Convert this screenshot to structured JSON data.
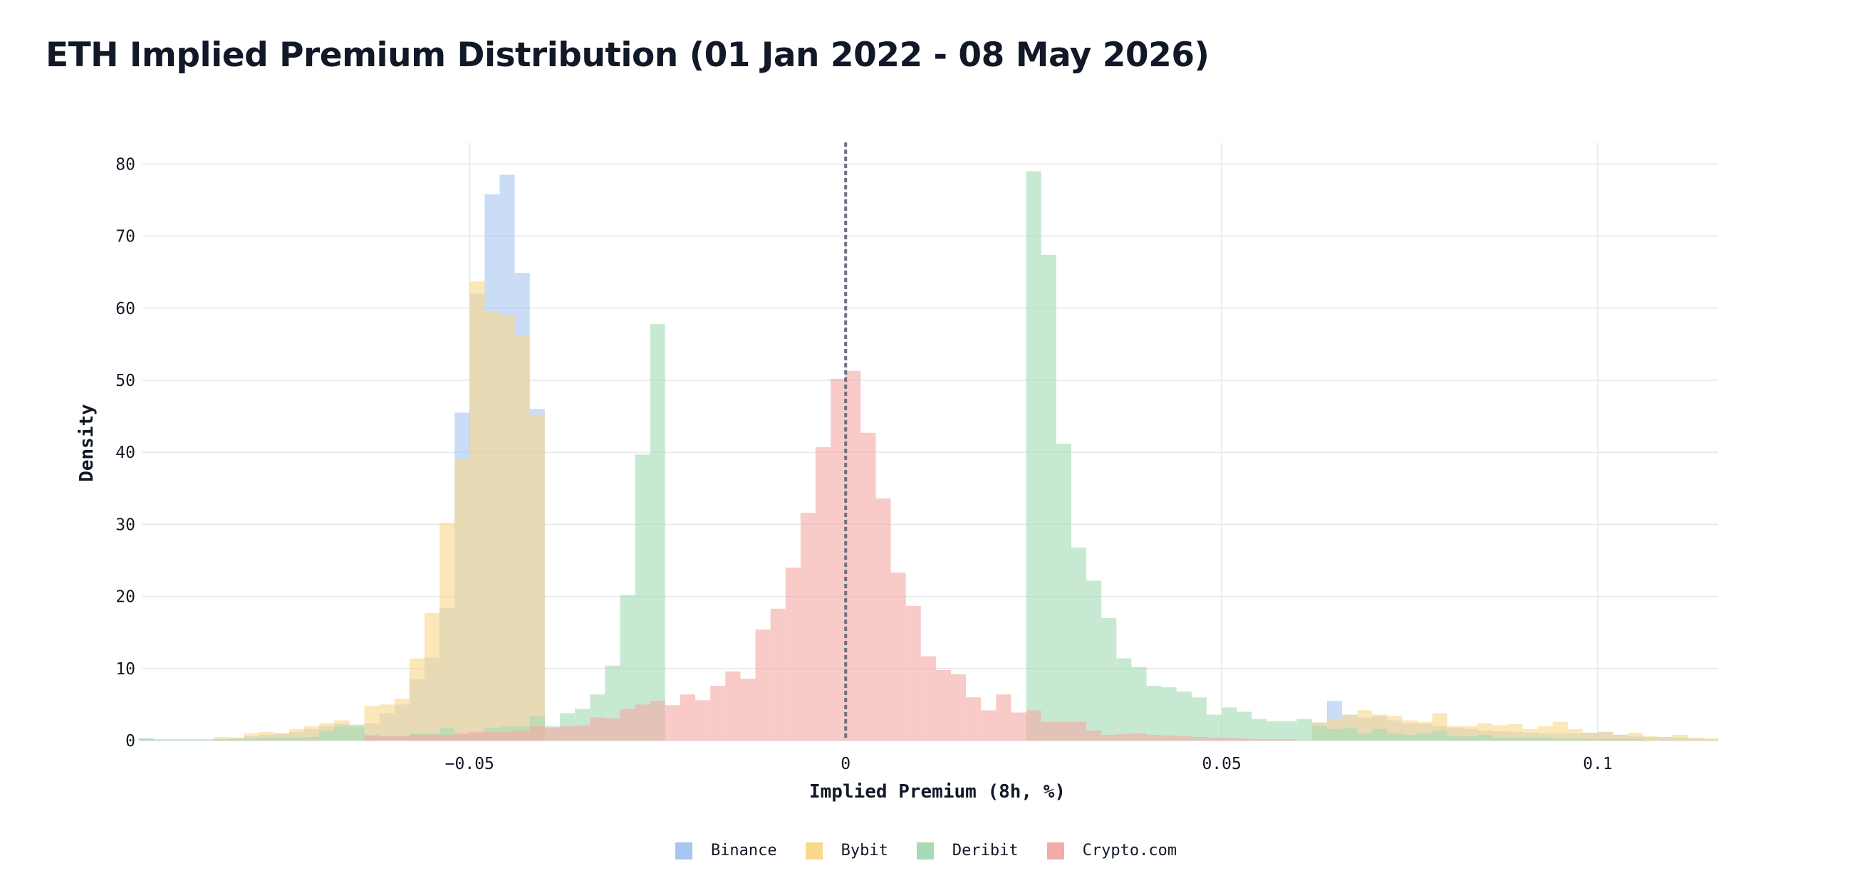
{
  "chart_data": {
    "type": "bar",
    "title": "ETH Implied Premium Distribution (01 Jan 2022 - 08 May 2026)",
    "xlabel": "Implied Premium (8h, %)",
    "ylabel": "Density",
    "xlim": [
      -0.0935,
      0.116
    ],
    "ylim": [
      0,
      83
    ],
    "x_ticks": [
      {
        "value": -0.05,
        "label": "−0.05"
      },
      {
        "value": 0,
        "label": "0"
      },
      {
        "value": 0.05,
        "label": "0.05"
      },
      {
        "value": 0.1,
        "label": "0.1"
      }
    ],
    "y_ticks": [
      {
        "value": 0,
        "label": "0"
      },
      {
        "value": 10,
        "label": "10"
      },
      {
        "value": 20,
        "label": "20"
      },
      {
        "value": 30,
        "label": "30"
      },
      {
        "value": 40,
        "label": "40"
      },
      {
        "value": 50,
        "label": "50"
      },
      {
        "value": 60,
        "label": "60"
      },
      {
        "value": 70,
        "label": "70"
      },
      {
        "value": 80,
        "label": "80"
      }
    ],
    "reference_line": {
      "x": 0,
      "style": "dashed",
      "color": "#6b7280"
    },
    "grid": true,
    "legend_position": "bottom-center",
    "bin_width": 0.002,
    "series": [
      {
        "name": "Binance",
        "color": "#a9c6f0",
        "bins": [
          [
            -0.094,
            0.3
          ],
          [
            -0.084,
            0.2
          ],
          [
            -0.082,
            0.4
          ],
          [
            -0.08,
            0.6
          ],
          [
            -0.078,
            0.8
          ],
          [
            -0.076,
            1.0
          ],
          [
            -0.074,
            1.2
          ],
          [
            -0.072,
            1.6
          ],
          [
            -0.07,
            2.0
          ],
          [
            -0.068,
            2.3
          ],
          [
            -0.066,
            1.8
          ],
          [
            -0.064,
            2.4
          ],
          [
            -0.062,
            3.8
          ],
          [
            -0.06,
            5.0
          ],
          [
            -0.058,
            8.5
          ],
          [
            -0.056,
            11.5
          ],
          [
            -0.054,
            18.4
          ],
          [
            -0.052,
            45.5
          ],
          [
            -0.05,
            62.0
          ],
          [
            -0.048,
            75.8
          ],
          [
            -0.046,
            78.5
          ],
          [
            -0.044,
            64.9
          ],
          [
            -0.042,
            46.0
          ],
          [
            0.062,
            2.5
          ],
          [
            0.064,
            5.5
          ],
          [
            0.066,
            3.6
          ],
          [
            0.068,
            3.2
          ],
          [
            0.07,
            3.4
          ],
          [
            0.072,
            2.8
          ],
          [
            0.074,
            2.4
          ],
          [
            0.076,
            2.3
          ],
          [
            0.078,
            2.0
          ],
          [
            0.08,
            1.8
          ],
          [
            0.082,
            1.6
          ],
          [
            0.084,
            1.4
          ],
          [
            0.086,
            1.3
          ],
          [
            0.088,
            1.2
          ],
          [
            0.09,
            1.1
          ],
          [
            0.092,
            1.0
          ],
          [
            0.094,
            1.0
          ],
          [
            0.096,
            1.0
          ],
          [
            0.098,
            1.1
          ],
          [
            0.1,
            1.2
          ],
          [
            0.102,
            0.8
          ],
          [
            0.104,
            0.6
          ],
          [
            0.106,
            0.5
          ],
          [
            0.108,
            0.5
          ],
          [
            0.11,
            0.4
          ],
          [
            0.112,
            0.3
          ],
          [
            0.114,
            0.2
          ]
        ]
      },
      {
        "name": "Bybit",
        "color": "#f9d98b",
        "bins": [
          [
            -0.084,
            0.5
          ],
          [
            -0.082,
            0.4
          ],
          [
            -0.08,
            1.0
          ],
          [
            -0.078,
            1.2
          ],
          [
            -0.076,
            1.0
          ],
          [
            -0.074,
            1.6
          ],
          [
            -0.072,
            2.0
          ],
          [
            -0.07,
            2.4
          ],
          [
            -0.068,
            2.8
          ],
          [
            -0.066,
            2.0
          ],
          [
            -0.064,
            4.8
          ],
          [
            -0.062,
            5.0
          ],
          [
            -0.06,
            5.8
          ],
          [
            -0.058,
            11.4
          ],
          [
            -0.056,
            17.7
          ],
          [
            -0.054,
            30.2
          ],
          [
            -0.052,
            39.0
          ],
          [
            -0.05,
            63.7
          ],
          [
            -0.048,
            59.6
          ],
          [
            -0.046,
            58.9
          ],
          [
            -0.044,
            56.2
          ],
          [
            -0.042,
            45.2
          ],
          [
            0.062,
            2.5
          ],
          [
            0.064,
            3.0
          ],
          [
            0.066,
            3.5
          ],
          [
            0.068,
            4.2
          ],
          [
            0.07,
            3.6
          ],
          [
            0.072,
            3.4
          ],
          [
            0.074,
            2.8
          ],
          [
            0.076,
            2.6
          ],
          [
            0.078,
            3.8
          ],
          [
            0.08,
            2.0
          ],
          [
            0.082,
            2.0
          ],
          [
            0.084,
            2.4
          ],
          [
            0.086,
            2.1
          ],
          [
            0.088,
            2.3
          ],
          [
            0.09,
            1.6
          ],
          [
            0.092,
            2.0
          ],
          [
            0.094,
            2.6
          ],
          [
            0.096,
            1.6
          ],
          [
            0.098,
            1.0
          ],
          [
            0.1,
            1.2
          ],
          [
            0.102,
            0.8
          ],
          [
            0.104,
            1.1
          ],
          [
            0.106,
            0.6
          ],
          [
            0.108,
            0.5
          ],
          [
            0.11,
            0.8
          ],
          [
            0.112,
            0.4
          ],
          [
            0.114,
            0.3
          ]
        ]
      },
      {
        "name": "Deribit",
        "color": "#a6dbb5",
        "bins": [
          [
            -0.094,
            0.3
          ],
          [
            -0.092,
            0.2
          ],
          [
            -0.09,
            0.2
          ],
          [
            -0.088,
            0.2
          ],
          [
            -0.086,
            0.2
          ],
          [
            -0.084,
            0.2
          ],
          [
            -0.082,
            0.2
          ],
          [
            -0.08,
            0.3
          ],
          [
            -0.078,
            0.4
          ],
          [
            -0.076,
            0.4
          ],
          [
            -0.074,
            0.4
          ],
          [
            -0.072,
            0.5
          ],
          [
            -0.07,
            1.3
          ],
          [
            -0.068,
            2.0
          ],
          [
            -0.066,
            2.2
          ],
          [
            -0.064,
            0.8
          ],
          [
            -0.062,
            0.6
          ],
          [
            -0.06,
            0.6
          ],
          [
            -0.058,
            1.0
          ],
          [
            -0.056,
            1.0
          ],
          [
            -0.054,
            1.8
          ],
          [
            -0.052,
            0.8
          ],
          [
            -0.05,
            1.0
          ],
          [
            -0.048,
            1.8
          ],
          [
            -0.046,
            2.0
          ],
          [
            -0.044,
            2.0
          ],
          [
            -0.042,
            3.4
          ],
          [
            -0.04,
            2.0
          ],
          [
            -0.038,
            3.8
          ],
          [
            -0.036,
            4.4
          ],
          [
            -0.034,
            6.4
          ],
          [
            -0.032,
            10.4
          ],
          [
            -0.03,
            20.2
          ],
          [
            -0.028,
            39.7
          ],
          [
            -0.026,
            57.8
          ],
          [
            0.024,
            79.0
          ],
          [
            0.026,
            67.4
          ],
          [
            0.028,
            41.2
          ],
          [
            0.03,
            26.8
          ],
          [
            0.032,
            22.2
          ],
          [
            0.034,
            17.0
          ],
          [
            0.036,
            11.4
          ],
          [
            0.038,
            10.2
          ],
          [
            0.04,
            7.6
          ],
          [
            0.042,
            7.4
          ],
          [
            0.044,
            6.8
          ],
          [
            0.046,
            6.0
          ],
          [
            0.048,
            3.6
          ],
          [
            0.05,
            4.6
          ],
          [
            0.052,
            4.0
          ],
          [
            0.054,
            3.0
          ],
          [
            0.056,
            2.7
          ],
          [
            0.058,
            2.7
          ],
          [
            0.06,
            3.0
          ],
          [
            0.062,
            2.0
          ],
          [
            0.064,
            1.6
          ],
          [
            0.066,
            1.8
          ],
          [
            0.068,
            1.0
          ],
          [
            0.07,
            1.6
          ],
          [
            0.072,
            1.0
          ],
          [
            0.074,
            0.8
          ],
          [
            0.076,
            1.0
          ],
          [
            0.078,
            1.4
          ],
          [
            0.08,
            0.6
          ],
          [
            0.082,
            0.6
          ],
          [
            0.084,
            0.8
          ],
          [
            0.086,
            0.4
          ],
          [
            0.088,
            0.4
          ],
          [
            0.09,
            0.4
          ],
          [
            0.092,
            0.4
          ],
          [
            0.094,
            0.3
          ],
          [
            0.096,
            0.3
          ],
          [
            0.098,
            0.2
          ],
          [
            0.1,
            0.2
          ],
          [
            0.102,
            0.2
          ],
          [
            0.104,
            0.2
          ]
        ]
      },
      {
        "name": "Crypto.com",
        "color": "#f4aaa7",
        "bins": [
          [
            -0.064,
            0.6
          ],
          [
            -0.062,
            0.6
          ],
          [
            -0.06,
            0.6
          ],
          [
            -0.058,
            0.8
          ],
          [
            -0.056,
            0.8
          ],
          [
            -0.054,
            0.8
          ],
          [
            -0.052,
            1.0
          ],
          [
            -0.05,
            1.2
          ],
          [
            -0.048,
            1.2
          ],
          [
            -0.046,
            1.2
          ],
          [
            -0.044,
            1.4
          ],
          [
            -0.042,
            2.0
          ],
          [
            -0.04,
            1.8
          ],
          [
            -0.038,
            2.0
          ],
          [
            -0.036,
            2.1
          ],
          [
            -0.034,
            3.2
          ],
          [
            -0.032,
            3.1
          ],
          [
            -0.03,
            4.4
          ],
          [
            -0.028,
            5.0
          ],
          [
            -0.026,
            5.5
          ],
          [
            -0.024,
            4.9
          ],
          [
            -0.022,
            6.4
          ],
          [
            -0.02,
            5.6
          ],
          [
            -0.018,
            7.6
          ],
          [
            -0.016,
            9.6
          ],
          [
            -0.014,
            8.6
          ],
          [
            -0.012,
            15.4
          ],
          [
            -0.01,
            18.3
          ],
          [
            -0.008,
            24.0
          ],
          [
            -0.006,
            31.6
          ],
          [
            -0.004,
            40.7
          ],
          [
            -0.002,
            50.2
          ],
          [
            0.0,
            51.3
          ],
          [
            0.002,
            42.7
          ],
          [
            0.004,
            33.6
          ],
          [
            0.006,
            23.3
          ],
          [
            0.008,
            18.7
          ],
          [
            0.01,
            11.7
          ],
          [
            0.012,
            9.8
          ],
          [
            0.014,
            9.2
          ],
          [
            0.016,
            6.0
          ],
          [
            0.018,
            4.2
          ],
          [
            0.02,
            6.4
          ],
          [
            0.022,
            3.9
          ],
          [
            0.024,
            4.2
          ],
          [
            0.026,
            2.6
          ],
          [
            0.028,
            2.6
          ],
          [
            0.03,
            2.6
          ],
          [
            0.032,
            1.4
          ],
          [
            0.034,
            0.8
          ],
          [
            0.036,
            0.9
          ],
          [
            0.038,
            1.0
          ],
          [
            0.04,
            0.8
          ],
          [
            0.042,
            0.7
          ],
          [
            0.044,
            0.6
          ],
          [
            0.046,
            0.5
          ],
          [
            0.048,
            0.4
          ],
          [
            0.05,
            0.4
          ],
          [
            0.052,
            0.3
          ],
          [
            0.054,
            0.2
          ],
          [
            0.056,
            0.2
          ],
          [
            0.058,
            0.2
          ]
        ]
      }
    ]
  }
}
